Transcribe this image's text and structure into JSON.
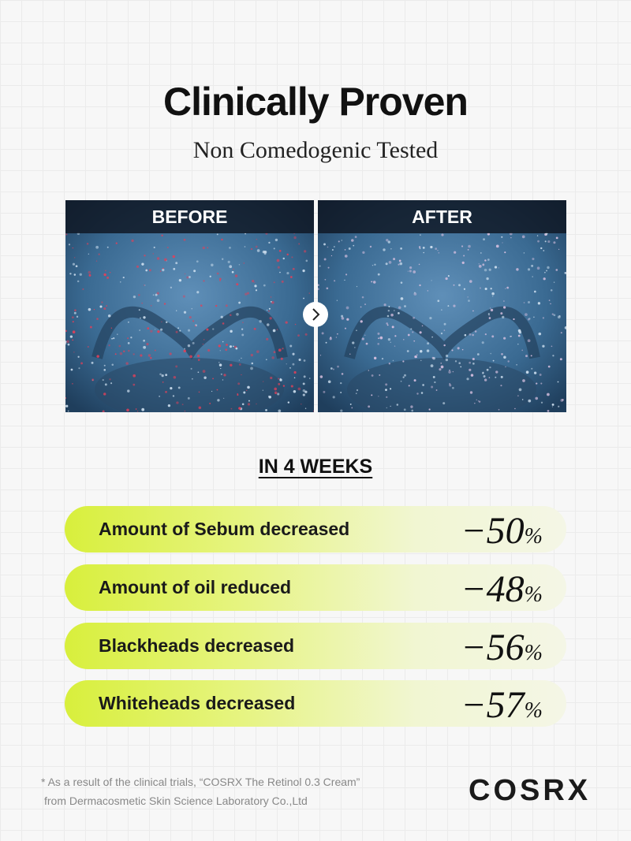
{
  "header": {
    "title": "Clinically Proven",
    "subtitle": "Non Comedogenic Tested"
  },
  "comparison": {
    "before": "BEFORE",
    "after": "AFTER"
  },
  "results": {
    "period": "IN 4 WEEKS",
    "rows": [
      {
        "label": "Amount of Sebum decreased",
        "number": "−50",
        "unit": "%"
      },
      {
        "label": "Amount of oil reduced",
        "number": "−48",
        "unit": "%"
      },
      {
        "label": "Blackheads decreased",
        "number": "−56",
        "unit": "%"
      },
      {
        "label": "Whiteheads decreased",
        "number": "−57",
        "unit": "%"
      }
    ]
  },
  "footer": {
    "note_lines": [
      "* As a result of the clinical trials, “COSRX The Retinol 0.3 Cream”",
      "from Dermacosmetic Skin Science Laboratory Co.,Ltd"
    ],
    "brand": "COSRX"
  }
}
